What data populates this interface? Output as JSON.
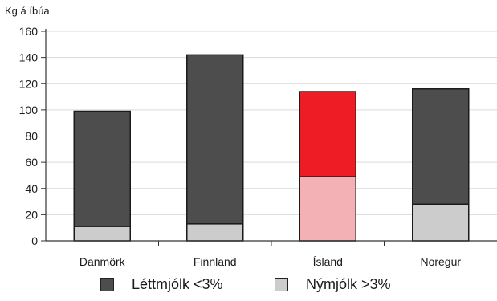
{
  "chart_data": {
    "type": "bar",
    "stacked": true,
    "ylabel": "Kg á íbúa",
    "ylim": [
      0,
      160
    ],
    "yticks": [
      0,
      20,
      40,
      60,
      80,
      100,
      120,
      140,
      160
    ],
    "grid": true,
    "legend_position": "bottom",
    "categories": [
      "Danmörk",
      "Finnland",
      "Ísland",
      "Noregur"
    ],
    "series": [
      {
        "name": "Nýmjólk >3%",
        "values": [
          11,
          13,
          49,
          28
        ],
        "color": "#cccccc",
        "highlight_color": "#f4b1b5"
      },
      {
        "name": "Léttmjólk <3%",
        "values": [
          88,
          129,
          65,
          88
        ],
        "color": "#4d4d4d",
        "highlight_color": "#ee1c25"
      }
    ],
    "highlight_category": "Ísland"
  },
  "legend": [
    {
      "label": "Léttmjólk <3%",
      "color": "#4d4d4d"
    },
    {
      "label": "Nýmjólk >3%",
      "color": "#cccccc"
    }
  ]
}
